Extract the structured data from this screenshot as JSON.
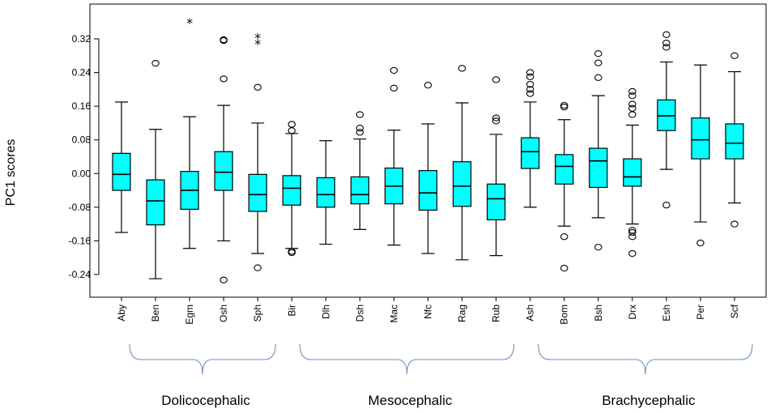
{
  "chart_data": {
    "type": "boxplot",
    "title": "",
    "xlabel": "",
    "ylabel": "PC1 scores",
    "ylim": [
      -0.32,
      0.4
    ],
    "yticks": [
      -0.24,
      -0.16,
      -0.08,
      0.0,
      0.08,
      0.16,
      0.24,
      0.32
    ],
    "ytick_labels": [
      "-0.24",
      "-0.16",
      "-0.08",
      "0.00",
      "0.08",
      "0.16",
      "0.24",
      "0.32"
    ],
    "box_color": "#00FFFF",
    "bracket_color": "#6B8FC7",
    "categories": [
      "Aby",
      "Ben",
      "Egm",
      "Osh",
      "Sph",
      "Bir",
      "Dlh",
      "Dsh",
      "Mac",
      "Nfc",
      "Rag",
      "Rub",
      "Ash",
      "Bom",
      "Bsh",
      "Drx",
      "Esh",
      "Per",
      "Scf"
    ],
    "boxes": [
      {
        "name": "Aby",
        "q1": -0.04,
        "median": -0.002,
        "q3": 0.048,
        "whisker_low": -0.14,
        "whisker_high": 0.17,
        "outliers": [],
        "extremes": []
      },
      {
        "name": "Ben",
        "q1": -0.122,
        "median": -0.065,
        "q3": -0.015,
        "whisker_low": -0.25,
        "whisker_high": 0.105,
        "outliers": [
          0.262
        ],
        "extremes": []
      },
      {
        "name": "Egm",
        "q1": -0.085,
        "median": -0.04,
        "q3": 0.005,
        "whisker_low": -0.178,
        "whisker_high": 0.135,
        "outliers": [],
        "extremes": [
          0.36
        ]
      },
      {
        "name": "Osh",
        "q1": -0.04,
        "median": 0.003,
        "q3": 0.052,
        "whisker_low": -0.16,
        "whisker_high": 0.162,
        "outliers": [
          -0.253,
          0.225,
          0.316,
          0.318
        ],
        "extremes": []
      },
      {
        "name": "Sph",
        "q1": -0.09,
        "median": -0.05,
        "q3": -0.002,
        "whisker_low": -0.19,
        "whisker_high": 0.12,
        "outliers": [
          -0.224,
          0.205
        ],
        "extremes": [
          0.31,
          0.325
        ]
      },
      {
        "name": "Bir",
        "q1": -0.075,
        "median": -0.035,
        "q3": -0.005,
        "whisker_low": -0.178,
        "whisker_high": 0.095,
        "outliers": [
          -0.188,
          -0.185,
          0.102,
          0.117
        ],
        "extremes": []
      },
      {
        "name": "Dlh",
        "q1": -0.08,
        "median": -0.05,
        "q3": -0.01,
        "whisker_low": -0.168,
        "whisker_high": 0.078,
        "outliers": [],
        "extremes": []
      },
      {
        "name": "Dsh",
        "q1": -0.072,
        "median": -0.05,
        "q3": -0.008,
        "whisker_low": -0.133,
        "whisker_high": 0.082,
        "outliers": [
          0.098,
          0.108,
          0.14
        ],
        "extremes": []
      },
      {
        "name": "Mac",
        "q1": -0.072,
        "median": -0.03,
        "q3": 0.013,
        "whisker_low": -0.17,
        "whisker_high": 0.103,
        "outliers": [
          0.203,
          0.245
        ],
        "extremes": []
      },
      {
        "name": "Nfc",
        "q1": -0.087,
        "median": -0.046,
        "q3": 0.007,
        "whisker_low": -0.19,
        "whisker_high": 0.118,
        "outliers": [
          0.21
        ],
        "extremes": []
      },
      {
        "name": "Rag",
        "q1": -0.078,
        "median": -0.03,
        "q3": 0.028,
        "whisker_low": -0.205,
        "whisker_high": 0.168,
        "outliers": [
          0.25
        ],
        "extremes": []
      },
      {
        "name": "Rub",
        "q1": -0.11,
        "median": -0.06,
        "q3": -0.025,
        "whisker_low": -0.195,
        "whisker_high": 0.093,
        "outliers": [
          0.125,
          0.132,
          0.223
        ],
        "extremes": []
      },
      {
        "name": "Ash",
        "q1": 0.012,
        "median": 0.052,
        "q3": 0.085,
        "whisker_low": -0.08,
        "whisker_high": 0.17,
        "outliers": [
          0.19,
          0.2,
          0.212,
          0.23,
          0.24
        ],
        "extremes": []
      },
      {
        "name": "Bom",
        "q1": -0.025,
        "median": 0.017,
        "q3": 0.045,
        "whisker_low": -0.125,
        "whisker_high": 0.128,
        "outliers": [
          -0.225,
          -0.15,
          0.158,
          0.162
        ],
        "extremes": []
      },
      {
        "name": "Bsh",
        "q1": -0.033,
        "median": 0.03,
        "q3": 0.06,
        "whisker_low": -0.105,
        "whisker_high": 0.185,
        "outliers": [
          -0.175,
          0.228,
          0.263,
          0.285
        ],
        "extremes": []
      },
      {
        "name": "Drx",
        "q1": -0.03,
        "median": -0.008,
        "q3": 0.035,
        "whisker_low": -0.12,
        "whisker_high": 0.115,
        "outliers": [
          -0.19,
          -0.15,
          -0.14,
          -0.135,
          0.14,
          0.155,
          0.165,
          0.185,
          0.195
        ],
        "extremes": []
      },
      {
        "name": "Esh",
        "q1": 0.102,
        "median": 0.137,
        "q3": 0.175,
        "whisker_low": 0.01,
        "whisker_high": 0.265,
        "outliers": [
          -0.075,
          0.3,
          0.31,
          0.33
        ],
        "extremes": []
      },
      {
        "name": "Per",
        "q1": 0.035,
        "median": 0.08,
        "q3": 0.132,
        "whisker_low": -0.115,
        "whisker_high": 0.258,
        "outliers": [
          -0.165
        ],
        "extremes": []
      },
      {
        "name": "Scf",
        "q1": 0.035,
        "median": 0.072,
        "q3": 0.118,
        "whisker_low": -0.07,
        "whisker_high": 0.242,
        "outliers": [
          -0.12,
          0.28
        ],
        "extremes": []
      }
    ],
    "groups": [
      {
        "label": "Dolicocephalic",
        "first": "Aby",
        "last": "Sph"
      },
      {
        "label": "Mesocephalic",
        "first": "Bir",
        "last": "Rub"
      },
      {
        "label": "Brachycephalic",
        "first": "Ash",
        "last": "Scf"
      }
    ]
  }
}
